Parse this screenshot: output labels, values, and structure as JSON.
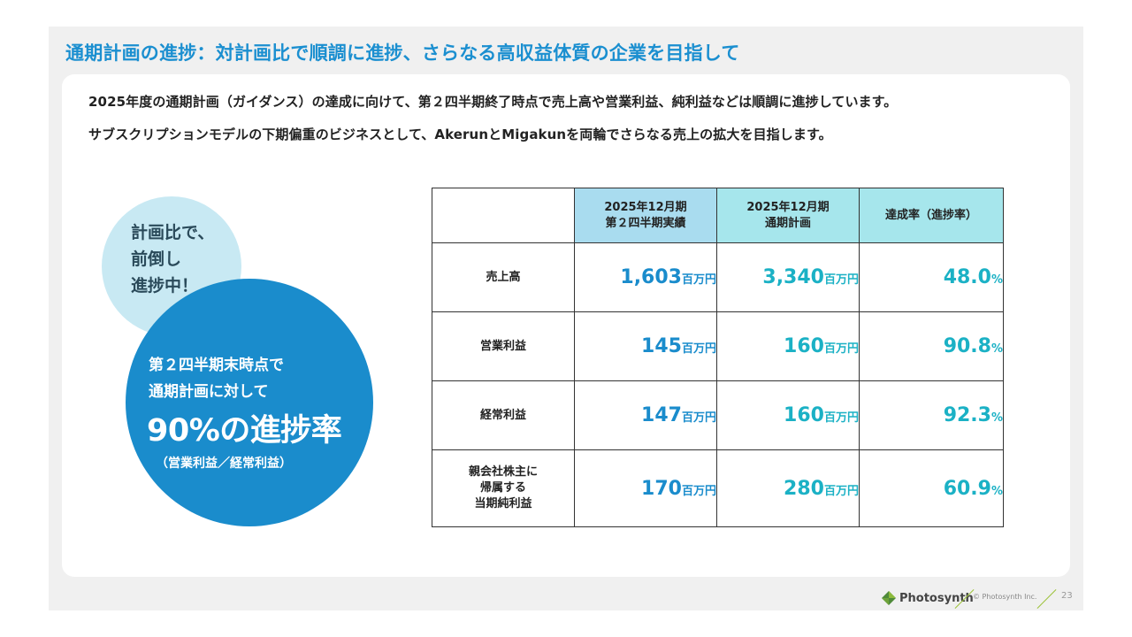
{
  "title": "通期計画の進捗：対計画比で順調に進捗、さらなる高収益体質の企業を目指して",
  "intro": [
    "2025年度の通期計画（ガイダンス）の達成に向けて、第２四半期終了時点で売上高や営業利益、純利益などは順調に進捗しています。",
    "サブスクリプションモデルの下期偏重のビジネスとして、AkerunとMigakunを両輪でさらなる売上の拡大を目指します。"
  ],
  "bubble_small": [
    "計画比で、",
    "前倒し",
    "進捗中！"
  ],
  "bubble_big": {
    "line1": "第２四半期末時点で",
    "line2": "通期計画に対して",
    "rate": "90%の進捗率",
    "note": "（営業利益／経常利益）"
  },
  "table": {
    "headers": {
      "actual": [
        "2025年12月期",
        "第２四半期実績"
      ],
      "plan": [
        "2025年12月期",
        "通期計画"
      ],
      "rate": "達成率（進捗率）"
    },
    "rows": [
      {
        "label": [
          "売上高"
        ],
        "actual": "1,603",
        "plan": "3,340",
        "rate": "48.0",
        "rate_color": "#1bb1c5"
      },
      {
        "label": [
          "営業利益"
        ],
        "actual": "145",
        "plan": "160",
        "rate": "90.8",
        "rate_color": "#1bb1c5"
      },
      {
        "label": [
          "経常利益"
        ],
        "actual": "147",
        "plan": "160",
        "rate": "92.3",
        "rate_color": "#1bb1c5"
      },
      {
        "label": [
          "親会社株主に",
          "帰属する",
          "当期純利益"
        ],
        "actual": "170",
        "plan": "280",
        "rate": "60.9",
        "rate_color": "#1bb1c5"
      }
    ],
    "unit": "百万円",
    "pct": "%"
  },
  "footer": {
    "brand": "Photosynth",
    "copyright": "© Photosynth Inc.",
    "page": "23",
    "accent": "#9cc33a"
  }
}
